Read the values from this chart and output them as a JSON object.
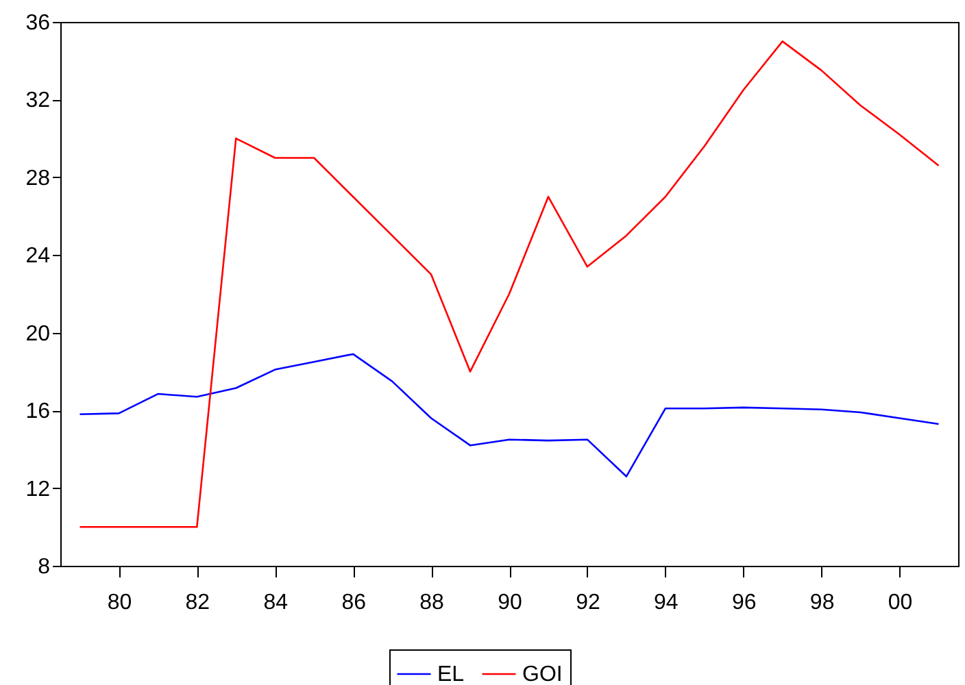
{
  "chart_data": {
    "type": "line",
    "x": [
      1979,
      1980,
      1981,
      1982,
      1983,
      1984,
      1985,
      1986,
      1987,
      1988,
      1989,
      1990,
      1991,
      1992,
      1993,
      1994,
      1995,
      1996,
      1997,
      1998,
      1999,
      2000,
      2001
    ],
    "series": [
      {
        "name": "EL",
        "color": "#0000ff",
        "values": [
          15.8,
          15.85,
          16.85,
          16.7,
          17.15,
          18.1,
          18.5,
          18.9,
          17.5,
          15.6,
          14.2,
          14.5,
          14.45,
          14.5,
          12.6,
          16.1,
          16.1,
          16.15,
          16.1,
          16.05,
          15.9,
          15.6,
          15.3
        ]
      },
      {
        "name": "GOI",
        "color": "#ff0000",
        "values": [
          10,
          10,
          10,
          10,
          30,
          29,
          29,
          27,
          25,
          23,
          18,
          22,
          27,
          23.4,
          25,
          27,
          29.6,
          32.5,
          35,
          33.5,
          31.7,
          30.2,
          28.6
        ]
      }
    ],
    "xlim": [
      1978.5,
      2001.5
    ],
    "xticks": [
      {
        "value": 1980,
        "label": "80"
      },
      {
        "value": 1982,
        "label": "82"
      },
      {
        "value": 1984,
        "label": "84"
      },
      {
        "value": 1986,
        "label": "86"
      },
      {
        "value": 1988,
        "label": "88"
      },
      {
        "value": 1990,
        "label": "90"
      },
      {
        "value": 1992,
        "label": "92"
      },
      {
        "value": 1994,
        "label": "94"
      },
      {
        "value": 1996,
        "label": "96"
      },
      {
        "value": 1998,
        "label": "98"
      },
      {
        "value": 2000,
        "label": "00"
      }
    ],
    "ylim": [
      8,
      36
    ],
    "yticks": [
      8,
      12,
      16,
      20,
      24,
      28,
      32,
      36
    ],
    "legend": "bottom",
    "grid": false
  }
}
